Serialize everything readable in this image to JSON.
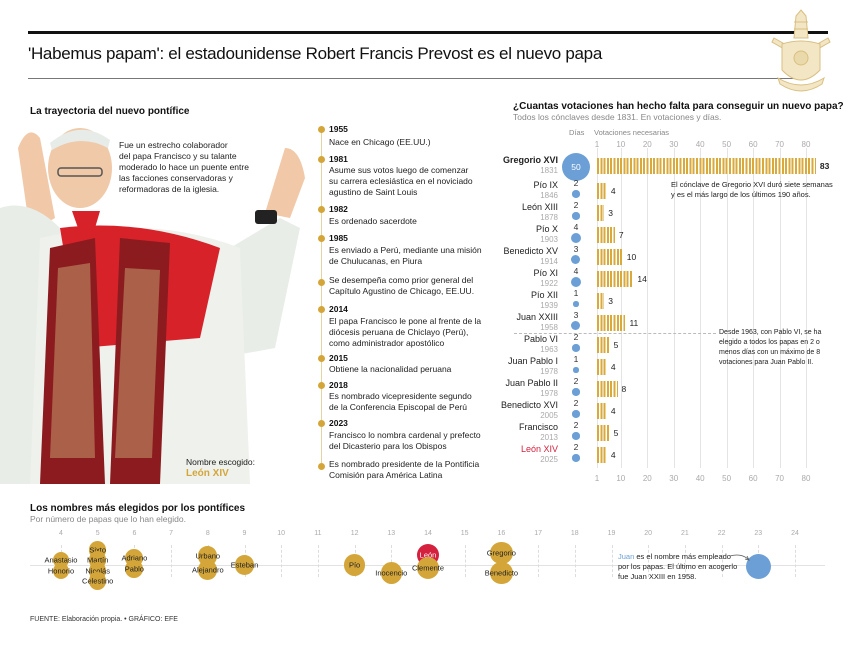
{
  "header": {
    "title": "'Habemus papam': el estadounidense Robert Francis Prevost es el nuevo papa",
    "crest_icon": "papal-coat-of-arms"
  },
  "trajectory": {
    "title": "La trayectoria del nuevo pontífice",
    "intro": [
      "Fue un estrecho colaborador",
      "del papa Francisco y su talante",
      "moderado lo hace un puente entre",
      "las facciones conservadoras y",
      "reformadoras de la iglesia."
    ],
    "chosen_label": "Nombre escogido:",
    "chosen_name": "León XIV",
    "timeline": [
      {
        "year": "1955",
        "text": [
          "Nace en Chicago (EE.UU.)"
        ]
      },
      {
        "year": "1981",
        "text": [
          "Asume sus votos luego de comenzar",
          "su carrera eclesiástica en el noviciado",
          "agustino de Saint Louis"
        ]
      },
      {
        "year": "1982",
        "text": [
          "Es ordenado sacerdote"
        ]
      },
      {
        "year": "1985",
        "text": [
          "Es enviado a Perú, mediante una misión",
          "de Chulucanas, en Piura"
        ]
      },
      {
        "year": "",
        "text": [
          "Se desempeña como prior general del",
          "Capítulo Agustino de Chicago, EE.UU."
        ]
      },
      {
        "year": "2014",
        "text": [
          "El papa Francisco le pone al frente de la",
          "diócesis peruana de Chiclayo (Perú),",
          "como administrador apostólico"
        ]
      },
      {
        "year": "2015",
        "text": [
          "Obtiene la nacionalidad peruana"
        ]
      },
      {
        "year": "2018",
        "text": [
          "Es nombrado vicepresidente segundo",
          "de la Conferencia Episcopal de Perú"
        ]
      },
      {
        "year": "2023",
        "text": [
          "Francisco lo nombra cardenal y prefecto",
          "del Dicasterio para los Obispos"
        ]
      },
      {
        "year": "",
        "text": [
          "Es nombrado presidente de la Pontificia",
          "Comisión para América Latina"
        ]
      }
    ]
  },
  "votes_chart": {
    "title": "¿Cuantas votaciones han hecho falta para conseguir un nuevo papa?",
    "subtitle": "Todos los cónclaves desde 1831. En votaciones y días.",
    "days_label": "Días",
    "votes_label": "Votaciones necesarias",
    "note1": [
      "El cónclave de Gregorio XVI duró siete semanas",
      "y es el más largo de los últimos 190 años."
    ],
    "note2": [
      "Desde 1963, con Pablo VI, se ha",
      "elegido a todos los papas en 2 o",
      "menos días con un máximo de 8",
      "votaciones para Juan Pablo II."
    ]
  },
  "names_chart": {
    "title": "Los nombres más elegidos por los pontífices",
    "subtitle": "Por número de papas que lo han elegido.",
    "note": {
      "highlight": "Juan",
      "rest1": " es el nombre más empleado",
      "line2": "por los papas. El último en acogerlo",
      "line3": "fue Juan XXIII en 1958."
    }
  },
  "footer": {
    "source": "FUENTE: Elaboración propia. • GRÁFICO: EFE"
  },
  "colors": {
    "gold": "#d4a63a",
    "blue": "#6b9fd6",
    "red": "#d4213d"
  },
  "chart_data": [
    {
      "type": "bar",
      "title": "¿Cuantas votaciones han hecho falta para conseguir un nuevo papa?",
      "subtitle": "Todos los cónclaves desde 1831. En votaciones y días.",
      "xlabel": "Votaciones necesarias",
      "xticks": [
        1,
        10,
        20,
        30,
        40,
        50,
        60,
        70,
        80
      ],
      "xlim": [
        0,
        85
      ],
      "categories": [
        "Gregorio XVI",
        "Pío IX",
        "León XIII",
        "Pío X",
        "Benedicto XV",
        "Pío XI",
        "Pío XII",
        "Juan XXIII",
        "Pablo VI",
        "Juan Pablo I",
        "Juan Pablo II",
        "Benedicto XVI",
        "Francisco",
        "León XIV"
      ],
      "years": [
        "1831",
        "1846",
        "1878",
        "1903",
        "1914",
        "1922",
        "1939",
        "1958",
        "1963",
        "1978",
        "1978",
        "2005",
        "2013",
        "2025"
      ],
      "series": [
        {
          "name": "Votaciones",
          "values": [
            83,
            4,
            3,
            7,
            10,
            14,
            3,
            11,
            5,
            4,
            8,
            4,
            5,
            4
          ]
        },
        {
          "name": "Días",
          "values": [
            50,
            2,
            2,
            4,
            3,
            4,
            1,
            3,
            2,
            1,
            2,
            2,
            2,
            2
          ]
        }
      ],
      "highlight": "León XIV"
    },
    {
      "type": "scatter",
      "title": "Los nombres más elegidos por los pontífices",
      "subtitle": "Por número de papas que lo han elegido.",
      "xticks": [
        4,
        5,
        6,
        7,
        8,
        9,
        10,
        11,
        12,
        13,
        14,
        15,
        16,
        17,
        18,
        19,
        20,
        21,
        22,
        23,
        24
      ],
      "points": [
        {
          "name": "Anastasio",
          "count": 4
        },
        {
          "name": "Honorio",
          "count": 4
        },
        {
          "name": "Sixto",
          "count": 5
        },
        {
          "name": "Martín",
          "count": 5
        },
        {
          "name": "Nicolás",
          "count": 5
        },
        {
          "name": "Celestino",
          "count": 5
        },
        {
          "name": "Adriano",
          "count": 6
        },
        {
          "name": "Pablo",
          "count": 6
        },
        {
          "name": "Urbano",
          "count": 8
        },
        {
          "name": "Alejandro",
          "count": 8
        },
        {
          "name": "Esteban",
          "count": 9
        },
        {
          "name": "Pío",
          "count": 12
        },
        {
          "name": "Inocencio",
          "count": 13
        },
        {
          "name": "León",
          "count": 14,
          "highlight": true
        },
        {
          "name": "Clemente",
          "count": 14
        },
        {
          "name": "Gregorio",
          "count": 16
        },
        {
          "name": "Benedicto",
          "count": 16
        },
        {
          "name": "Juan",
          "count": 23,
          "highlight": true
        }
      ]
    }
  ]
}
